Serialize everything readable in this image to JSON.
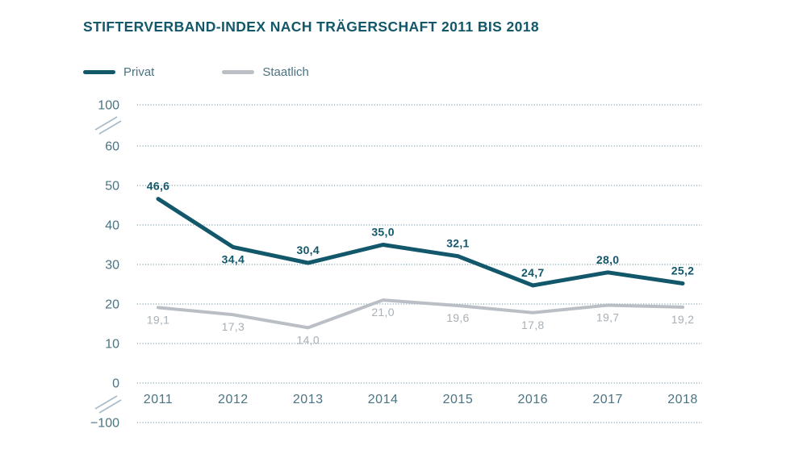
{
  "title": "STIFTERVERBAND-INDEX NACH TRÄGERSCHAFT 2011 BIS 2018",
  "colors": {
    "accent": "#12576a",
    "staatlich_line": "#b9bfc4",
    "staatlich_label": "#a8b0b6",
    "axis_text": "#4b7382",
    "grid": "#7d9fae",
    "break_mark": "#a7bcc7",
    "background": "#ffffff"
  },
  "chart_data": {
    "type": "line",
    "title": "STIFTERVERBAND-INDEX NACH TRÄGERSCHAFT 2011 BIS 2018",
    "categories": [
      "2011",
      "2012",
      "2013",
      "2014",
      "2015",
      "2016",
      "2017",
      "2018"
    ],
    "series": [
      {
        "name": "Privat",
        "color": "#12576a",
        "label_color": "#12576a",
        "values": [
          46.6,
          34.4,
          30.4,
          35.0,
          32.1,
          24.7,
          28.0,
          25.2
        ],
        "labels": [
          "46,6",
          "34,4",
          "30,4",
          "35,0",
          "32,1",
          "24,7",
          "28,0",
          "25,2"
        ],
        "label_placement": [
          "above",
          "below",
          "above",
          "above",
          "above",
          "above",
          "above",
          "above"
        ]
      },
      {
        "name": "Staatlich",
        "color": "#b9bfc4",
        "label_color": "#a8b0b6",
        "values": [
          19.1,
          17.3,
          14.0,
          21.0,
          19.6,
          17.8,
          19.7,
          19.2
        ],
        "labels": [
          "19,1",
          "17,3",
          "14,0",
          "21,0",
          "19,6",
          "17,8",
          "19,7",
          "19,2"
        ],
        "label_placement": [
          "below",
          "below",
          "below",
          "below",
          "below",
          "below",
          "below",
          "below"
        ]
      }
    ],
    "y_axis": {
      "ticks": [
        {
          "value": 100,
          "label": "100"
        },
        {
          "value": 60,
          "label": "60"
        },
        {
          "value": 50,
          "label": "50"
        },
        {
          "value": 40,
          "label": "40"
        },
        {
          "value": 30,
          "label": "30"
        },
        {
          "value": 20,
          "label": "20"
        },
        {
          "value": 10,
          "label": "10"
        },
        {
          "value": 0,
          "label": "0"
        },
        {
          "value": -100,
          "label": "−100"
        }
      ],
      "broken_axis": true,
      "breaks": [
        "between 60 and 100",
        "between 0 and −100"
      ]
    },
    "grid": "dotted horizontal",
    "legend_position": "top-left",
    "xlabel": "",
    "ylabel": ""
  }
}
